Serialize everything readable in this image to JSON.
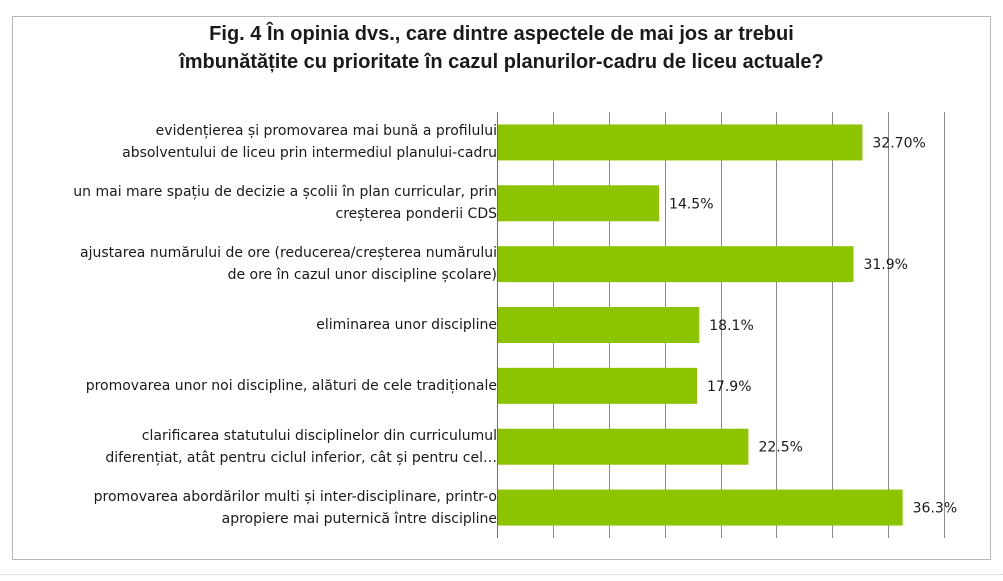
{
  "chart_data": {
    "type": "bar",
    "orientation": "horizontal",
    "title": "Fig. 4 În opinia dvs., care dintre aspectele de mai jos ar trebui îmbunătățite cu prioritate în cazul planurilor-cadru de liceu actuale?",
    "title_lines": [
      "Fig. 4 În opinia dvs., care dintre aspectele de mai jos ar trebui",
      "îmbunătățite cu prioritate în cazul planurilor-cadru de liceu actuale?"
    ],
    "categories": [
      [
        "evidențierea și promovarea mai bună a profilului",
        "absolventului de liceu prin intermediul planului-cadru"
      ],
      [
        "un mai mare spațiu de decizie a școlii în plan curricular, prin",
        "creșterea ponderii CDS"
      ],
      [
        "ajustarea numărului de ore (reducerea/creșterea numărului",
        "de ore în cazul unor discipline școlare)"
      ],
      [
        "eliminarea unor discipline"
      ],
      [
        "promovarea unor noi discipline, alături de cele tradiționale"
      ],
      [
        "clarificarea statutului disciplinelor din curriculumul",
        "diferențiat, atât pentru ciclul inferior, cât și pentru cel…"
      ],
      [
        "promovarea abordărilor multi și inter-disciplinare, printr-o",
        "apropiere mai puternică între discipline"
      ]
    ],
    "values": [
      32.7,
      14.5,
      31.9,
      18.1,
      17.9,
      22.5,
      36.3
    ],
    "data_labels": [
      "32.70%",
      "14.5%",
      "31.9%",
      "18.1%",
      "17.9%",
      "22.5%",
      "36.3%"
    ],
    "xlim": [
      0,
      40
    ],
    "grid": true,
    "legend": "none",
    "colors": {
      "bar": "#8cc400",
      "grid": "#8a8a8a",
      "axis": "#6b6b6b",
      "text": "#1a1a1a",
      "frame": "#b9b9b9"
    }
  }
}
